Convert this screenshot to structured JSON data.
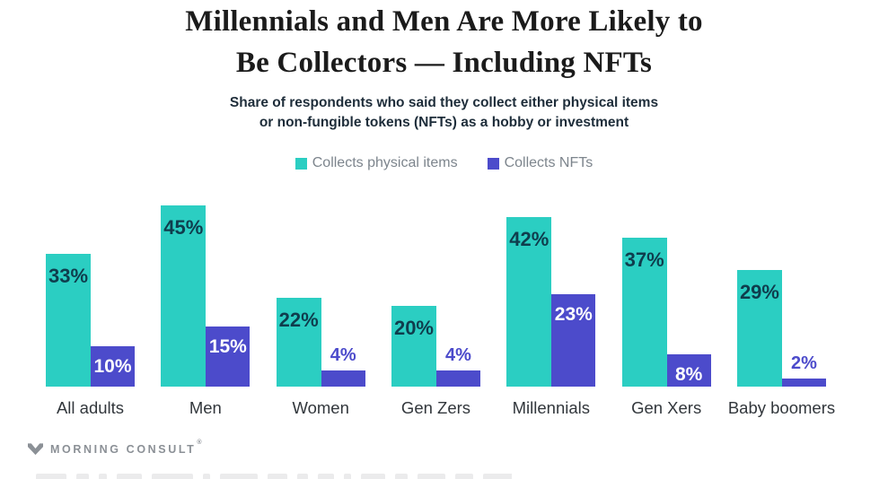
{
  "title_lines": [
    "Millennials and Men Are More Likely to",
    "Be Collectors — Including NFTs"
  ],
  "subtitle_lines": [
    "Share of respondents who said they collect either physical items",
    "or non-fungible tokens (NFTs) as a hobby or investment"
  ],
  "legend": [
    {
      "label": "Collects physical items",
      "color": "#2BCEC2"
    },
    {
      "label": "Collects NFTs",
      "color": "#4C4BCB"
    }
  ],
  "footer": {
    "logo_text": "MORNING CONSULT",
    "trademark": "®"
  },
  "colors": {
    "physical_bar": "#2BCEC2",
    "nft_bar": "#4C4BCB",
    "bar_label_dark": "#0F3D4D",
    "bar_label_light": "#ffffff",
    "title_text": "#1b1b1b",
    "subtitle_text": "#1e2d3a",
    "legend_text": "#7d858d",
    "category_text": "#32373c",
    "logo_gray": "#8b9096"
  },
  "chart_data": {
    "type": "bar",
    "title": "Millennials and Men Are More Likely to Be Collectors — Including NFTs",
    "subtitle": "Share of respondents who said they collect either physical items or non-fungible tokens (NFTs) as a hobby or investment",
    "categories": [
      "All adults",
      "Men",
      "Women",
      "Gen Zers",
      "Millennials",
      "Gen Xers",
      "Baby boomers"
    ],
    "series": [
      {
        "name": "Collects physical items",
        "color": "#2BCEC2",
        "values": [
          33,
          45,
          22,
          20,
          42,
          37,
          29
        ]
      },
      {
        "name": "Collects NFTs",
        "color": "#4C4BCB",
        "values": [
          10,
          15,
          4,
          4,
          23,
          8,
          2
        ]
      }
    ],
    "value_suffix": "%",
    "ylim": [
      0,
      45
    ],
    "grid": false,
    "axes_shown": false,
    "data_labels": true,
    "legend_position": "top"
  }
}
